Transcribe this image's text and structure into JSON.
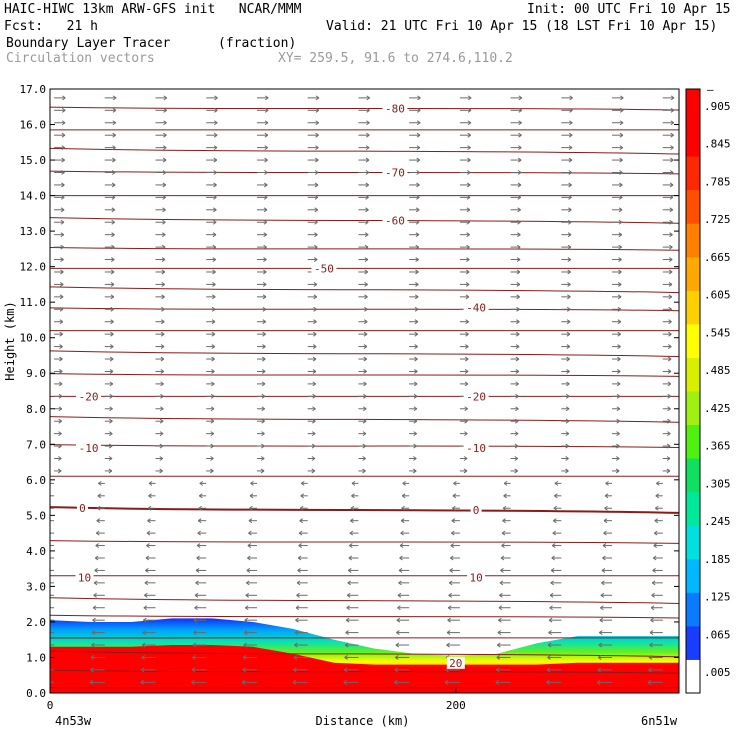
{
  "header": {
    "model_line": "HAIC-HIWC 13km ARW-GFS init   NCAR/MMM",
    "init_line": "Init: 00 UTC Fri 10 Apr 15",
    "fcst_line": "Fcst:   21 h",
    "valid_line": "Valid: 21 UTC Fri 10 Apr 15 (18 LST Fri 10 Apr 15)",
    "field_name": "Boundary Layer Tracer",
    "field_units": "(fraction)",
    "vector_label": "Circulation vectors",
    "xy_label": "XY= 259.5, 91.6 to 274.6,110.2"
  },
  "chart_data": {
    "type": "heatmap",
    "title": "Boundary Layer Tracer",
    "xlabel": "Distance (km)",
    "ylabel": "Height (km)",
    "xlim": [
      0,
      310
    ],
    "ylim": [
      0,
      17
    ],
    "x_ticks": [
      0,
      200
    ],
    "x_tick_labels": [
      "0",
      "200"
    ],
    "x_end_labels": [
      "4n53w",
      "6n51w"
    ],
    "y_ticks": [
      0,
      1,
      2,
      3,
      4,
      5,
      6,
      7,
      8,
      9,
      10,
      11,
      12,
      13,
      14,
      15,
      16,
      17
    ],
    "y_tick_labels": [
      "0.0",
      "1.0",
      "2.0",
      "3.0",
      "4.0",
      "5.0",
      "6.0",
      "7.0",
      "8.0",
      "9.0",
      "10.0",
      "11.0",
      "12.0",
      "13.0",
      "14.0",
      "15.0",
      "16.0",
      "17.0"
    ],
    "colorbar": {
      "labels": [
        ".005",
        ".065",
        ".125",
        ".185",
        ".245",
        ".305",
        ".365",
        ".425",
        ".485",
        ".545",
        ".605",
        ".665",
        ".725",
        ".785",
        ".845",
        ".905"
      ],
      "top_label": "–",
      "colors": [
        "#ffffff",
        "#1a3cff",
        "#0a7aff",
        "#00b8ff",
        "#00e0e0",
        "#00e89a",
        "#10e060",
        "#50f010",
        "#a0f010",
        "#d8f000",
        "#ffff00",
        "#ffd000",
        "#ffa800",
        "#ff8000",
        "#ff5000",
        "#ff2800",
        "#ff0000",
        "#ff0000"
      ]
    },
    "temperature_contours_C": [
      {
        "label": "-80",
        "x": 170,
        "y": 16.45
      },
      {
        "label": "-70",
        "x": 170,
        "y": 14.65
      },
      {
        "label": "-60",
        "x": 170,
        "y": 13.3
      },
      {
        "label": "-50",
        "x": 135,
        "y": 11.95
      },
      {
        "label": "-40",
        "x": 210,
        "y": 10.85
      },
      {
        "label": "-20",
        "x": 19,
        "y": 8.35
      },
      {
        "label": "-20",
        "x": 210,
        "y": 8.35
      },
      {
        "label": "-10",
        "x": 19,
        "y": 6.9
      },
      {
        "label": "-10",
        "x": 210,
        "y": 6.9
      },
      {
        "label": "0",
        "x": 16,
        "y": 5.2
      },
      {
        "label": "0",
        "x": 210,
        "y": 5.15
      },
      {
        "label": "10",
        "x": 17,
        "y": 3.25
      },
      {
        "label": "10",
        "x": 210,
        "y": 3.25
      },
      {
        "label": "20",
        "x": 200,
        "y": 0.85
      }
    ],
    "contour_levels_km": [
      0.15,
      0.6,
      1.1,
      1.55,
      2.15,
      2.6,
      3.3,
      4.25,
      5.15,
      6.1,
      6.95,
      7.7,
      8.35,
      8.95,
      9.55,
      10.2,
      10.8,
      11.35,
      11.95,
      12.5,
      13.3,
      14.0,
      14.65,
      15.25,
      15.85,
      16.45
    ],
    "tracer_profile": {
      "x_km": [
        0,
        20,
        40,
        60,
        80,
        100,
        120,
        140,
        160,
        180,
        200,
        220,
        240,
        260,
        280,
        300,
        310
      ],
      "top_km": [
        2.05,
        2.0,
        2.0,
        2.1,
        2.1,
        2.0,
        1.8,
        1.5,
        1.25,
        1.1,
        1.05,
        1.1,
        1.4,
        1.6,
        1.6,
        1.6,
        1.6
      ],
      "red_top_km": [
        1.3,
        1.3,
        1.3,
        1.35,
        1.35,
        1.3,
        1.1,
        0.85,
        0.8,
        0.8,
        0.8,
        0.8,
        0.8,
        0.85,
        0.85,
        0.85,
        0.85
      ]
    },
    "vectors": {
      "description_levels": "westerly aloft, easterly near surface",
      "upper_direction": "east",
      "lower_direction": "west"
    }
  }
}
